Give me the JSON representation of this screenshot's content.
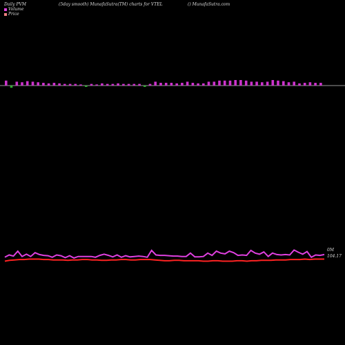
{
  "header": {
    "left": "Daily PVM",
    "middle": "(5day smooth) MunafaSutra(TM) charts for VTEL",
    "right": "() MunafaSutra.com"
  },
  "legend": [
    {
      "label": "Volume",
      "color": "#e040e0"
    },
    {
      "label": "Price",
      "color": "#f08080"
    }
  ],
  "labels": {
    "volume_level": "0M",
    "price_level": "104.17"
  },
  "colors": {
    "volume_up": "#cc33cc",
    "volume_down": "#33aa33",
    "volume_line": "#e040e0",
    "price_line": "#ff2222",
    "baseline": "#cccccc"
  },
  "chart_data": {
    "type": "bar",
    "volume_bars": [
      {
        "v": 0.9,
        "down": false
      },
      {
        "v": 0.8,
        "down": true
      },
      {
        "v": 0.7,
        "down": false
      },
      {
        "v": 0.6,
        "down": false
      },
      {
        "v": 0.8,
        "down": false
      },
      {
        "v": 0.7,
        "down": false
      },
      {
        "v": 0.6,
        "down": false
      },
      {
        "v": 0.5,
        "down": false
      },
      {
        "v": 0.4,
        "down": false
      },
      {
        "v": 0.5,
        "down": false
      },
      {
        "v": 0.4,
        "down": false
      },
      {
        "v": 0.3,
        "down": false
      },
      {
        "v": 0.3,
        "down": false
      },
      {
        "v": 0.3,
        "down": false
      },
      {
        "v": 0.2,
        "down": false
      },
      {
        "v": 0.3,
        "down": true
      },
      {
        "v": 0.3,
        "down": false
      },
      {
        "v": 0.2,
        "down": false
      },
      {
        "v": 0.4,
        "down": false
      },
      {
        "v": 0.3,
        "down": false
      },
      {
        "v": 0.3,
        "down": false
      },
      {
        "v": 0.4,
        "down": false
      },
      {
        "v": 0.3,
        "down": false
      },
      {
        "v": 0.3,
        "down": false
      },
      {
        "v": 0.3,
        "down": false
      },
      {
        "v": 0.3,
        "down": false
      },
      {
        "v": 0.2,
        "down": true
      },
      {
        "v": 0.3,
        "down": false
      },
      {
        "v": 0.7,
        "down": false
      },
      {
        "v": 0.5,
        "down": false
      },
      {
        "v": 0.5,
        "down": false
      },
      {
        "v": 0.5,
        "down": false
      },
      {
        "v": 0.4,
        "down": false
      },
      {
        "v": 0.5,
        "down": false
      },
      {
        "v": 0.7,
        "down": false
      },
      {
        "v": 0.5,
        "down": false
      },
      {
        "v": 0.4,
        "down": false
      },
      {
        "v": 0.4,
        "down": false
      },
      {
        "v": 0.7,
        "down": false
      },
      {
        "v": 0.7,
        "down": false
      },
      {
        "v": 0.9,
        "down": false
      },
      {
        "v": 0.9,
        "down": false
      },
      {
        "v": 0.9,
        "down": false
      },
      {
        "v": 1.0,
        "down": false
      },
      {
        "v": 1.0,
        "down": false
      },
      {
        "v": 0.9,
        "down": false
      },
      {
        "v": 0.7,
        "down": false
      },
      {
        "v": 0.7,
        "down": false
      },
      {
        "v": 0.6,
        "down": false
      },
      {
        "v": 0.7,
        "down": false
      },
      {
        "v": 1.0,
        "down": false
      },
      {
        "v": 0.9,
        "down": false
      },
      {
        "v": 0.8,
        "down": false
      },
      {
        "v": 0.6,
        "down": false
      },
      {
        "v": 0.7,
        "down": false
      },
      {
        "v": 0.4,
        "down": false
      },
      {
        "v": 0.5,
        "down": false
      },
      {
        "v": 0.6,
        "down": false
      },
      {
        "v": 0.5,
        "down": false
      },
      {
        "v": 0.5,
        "down": false
      }
    ],
    "volume_line": [
      0.4,
      1.0,
      0.7,
      2.0,
      0.6,
      1.2,
      0.6,
      1.6,
      1.1,
      0.9,
      0.8,
      0.4,
      1.0,
      0.8,
      0.3,
      0.8,
      0.2,
      0.6,
      0.6,
      0.6,
      0.6,
      0.4,
      0.9,
      1.2,
      0.9,
      0.5,
      1.0,
      0.4,
      0.8,
      0.5,
      0.6,
      0.7,
      0.6,
      0.4,
      2.2,
      1.0,
      0.9,
      0.9,
      0.8,
      0.7,
      0.7,
      0.6,
      0.6,
      1.5,
      0.5,
      0.5,
      0.6,
      1.5,
      0.9,
      2.0,
      1.5,
      1.3,
      2.0,
      1.6,
      0.9,
      1.0,
      0.9,
      2.2,
      1.5,
      1.2,
      1.8,
      0.6,
      1.5,
      1.1,
      1.0,
      1.1,
      1.0,
      2.3,
      1.7,
      1.2,
      1.9,
      0.4,
      1.0,
      0.9,
      1.1
    ],
    "price_line": [
      0.0,
      0.2,
      0.3,
      0.4,
      0.4,
      0.5,
      0.5,
      0.5,
      0.4,
      0.4,
      0.3,
      0.3,
      0.3,
      0.2,
      0.3,
      0.3,
      0.4,
      0.4,
      0.3,
      0.3,
      0.2,
      0.2,
      0.3,
      0.3,
      0.4,
      0.4,
      0.3,
      0.3,
      0.4,
      0.4,
      0.4,
      0.3,
      0.2,
      0.1,
      0.1,
      0.2,
      0.2,
      0.1,
      0.1,
      0.1,
      0.1,
      0.0,
      0.0,
      0.1,
      0.1,
      0.0,
      0.0,
      0.0,
      0.1,
      0.1,
      0.0,
      0.1,
      0.1,
      0.2,
      0.2,
      0.2,
      0.3,
      0.3,
      0.3,
      0.4,
      0.4,
      0.4,
      0.5,
      0.4,
      0.5,
      0.5,
      0.5
    ],
    "title": "(5day smooth) MunafaSutra(TM) charts for VTEL",
    "series": [
      {
        "name": "Volume"
      },
      {
        "name": "Price"
      }
    ]
  }
}
